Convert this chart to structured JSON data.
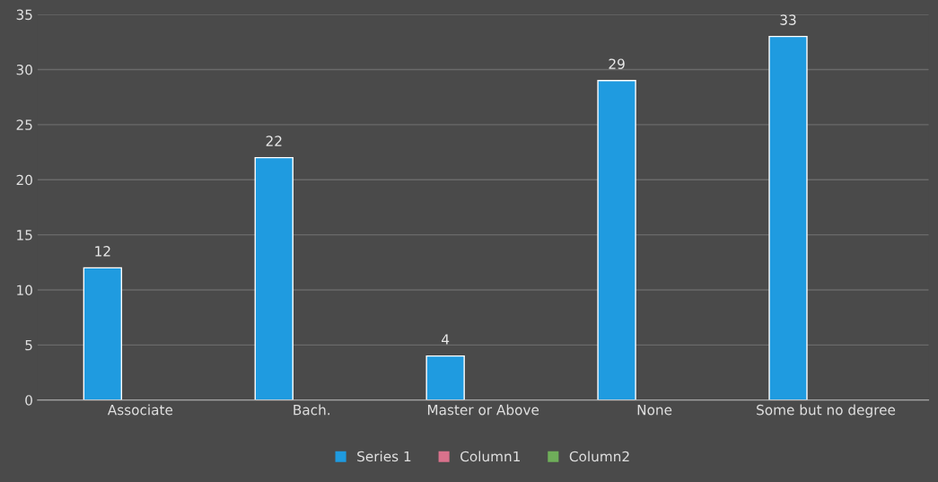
{
  "chart_data": {
    "type": "bar",
    "categories": [
      "Associate",
      "Bach.",
      "Master or Above",
      "None",
      "Some but no degree"
    ],
    "series": [
      {
        "name": "Series 1",
        "color": "#1f9be0",
        "values": [
          12,
          22,
          4,
          29,
          33
        ]
      },
      {
        "name": "Column1",
        "color": "#d9728c",
        "values": [
          null,
          null,
          null,
          null,
          null
        ]
      },
      {
        "name": "Column2",
        "color": "#6fae5a",
        "values": [
          null,
          null,
          null,
          null,
          null
        ]
      }
    ],
    "ylim": [
      0,
      35
    ],
    "yticks": [
      0,
      5,
      10,
      15,
      20,
      25,
      30,
      35
    ],
    "grid": "y",
    "legend": "bottom",
    "data_labels": true
  }
}
